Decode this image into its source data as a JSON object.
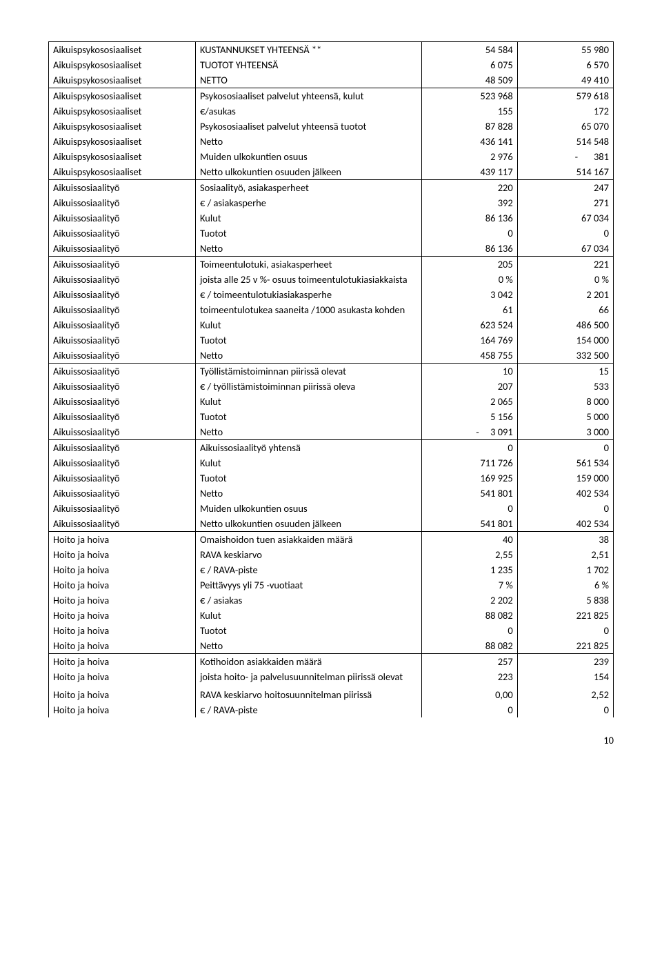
{
  "pageNumber": "10",
  "rows": [
    {
      "c0": "Aikuispsykososiaaliset",
      "c1": "KUSTANNUKSET YHTEENSÄ **",
      "c2": "54 584",
      "c3": "55 980",
      "hline": false
    },
    {
      "c0": "Aikuispsykososiaaliset",
      "c1": "TUOTOT YHTEENSÄ",
      "c2": "6 075",
      "c3": "6 570",
      "hline": false
    },
    {
      "c0": "Aikuispsykososiaaliset",
      "c1": "NETTO",
      "c2": "48 509",
      "c3": "49 410",
      "hline": true
    },
    {
      "c0": "Aikuispsykososiaaliset",
      "c1": "Psykososiaaliset palvelut yhteensä, kulut",
      "c2": "523 968",
      "c3": "579 618",
      "hline": false
    },
    {
      "c0": "Aikuispsykososiaaliset",
      "c1": "€/asukas",
      "c2": "155",
      "c3": "172",
      "hline": false
    },
    {
      "c0": "Aikuispsykososiaaliset",
      "c1": "Psykososiaaliset palvelut yhteensä tuotot",
      "c2": "87 828",
      "c3": "65 070",
      "hline": false
    },
    {
      "c0": "Aikuispsykososiaaliset",
      "c1": "Netto",
      "c2": "436 141",
      "c3": "514 548",
      "hline": false
    },
    {
      "c0": "Aikuispsykososiaaliset",
      "c1": "Muiden ulkokuntien osuus",
      "c2": "2 976",
      "c3": "-       381",
      "hline": false
    },
    {
      "c0": "Aikuispsykososiaaliset",
      "c1": "Netto ulkokuntien osuuden jälkeen",
      "c2": "439 117",
      "c3": "514 167",
      "hline": true
    },
    {
      "c0": "Aikuissosiaalityö",
      "c1": "Sosiaalityö, asiakasperheet",
      "c2": "220",
      "c3": "247",
      "hline": false
    },
    {
      "c0": "Aikuissosiaalityö",
      "c1": "€ / asiakasperhe",
      "c2": "392",
      "c3": "271",
      "hline": false
    },
    {
      "c0": "Aikuissosiaalityö",
      "c1": "Kulut",
      "c2": "86 136",
      "c3": "67 034",
      "hline": false
    },
    {
      "c0": "Aikuissosiaalityö",
      "c1": "Tuotot",
      "c2": "0",
      "c3": "0",
      "hline": false
    },
    {
      "c0": "Aikuissosiaalityö",
      "c1": "Netto",
      "c2": "86 136",
      "c3": "67 034",
      "hline": true
    },
    {
      "c0": "Aikuissosiaalityö",
      "c1": "Toimeentulotuki, asiakasperheet",
      "c2": "205",
      "c3": "221",
      "hline": false
    },
    {
      "c0": "Aikuissosiaalityö",
      "c1": "joista alle 25 v %- osuus toimeentulotukiasiakkaista",
      "c2": "0 %",
      "c3": "0 %",
      "hline": false
    },
    {
      "c0": "Aikuissosiaalityö",
      "c1": "€ / toimeentulotukiasiakasperhe",
      "c2": "3 042",
      "c3": "2 201",
      "hline": false
    },
    {
      "c0": "Aikuissosiaalityö",
      "c1": "toimeentulotukea saaneita /1000 asukasta kohden",
      "c2": "61",
      "c3": "66",
      "hline": false
    },
    {
      "c0": "Aikuissosiaalityö",
      "c1": "Kulut",
      "c2": "623 524",
      "c3": "486 500",
      "hline": false
    },
    {
      "c0": "Aikuissosiaalityö",
      "c1": "Tuotot",
      "c2": "164 769",
      "c3": "154 000",
      "hline": false
    },
    {
      "c0": "Aikuissosiaalityö",
      "c1": "Netto",
      "c2": "458 755",
      "c3": "332 500",
      "hline": true
    },
    {
      "c0": "Aikuissosiaalityö",
      "c1": "Työllistämistoiminnan piirissä olevat",
      "c2": "10",
      "c3": "15",
      "hline": false
    },
    {
      "c0": "Aikuissosiaalityö",
      "c1": "€ / työllistämistoiminnan piirissä oleva",
      "c2": "207",
      "c3": "533",
      "hline": false
    },
    {
      "c0": "Aikuissosiaalityö",
      "c1": "Kulut",
      "c2": "2 065",
      "c3": "8 000",
      "hline": false
    },
    {
      "c0": "Aikuissosiaalityö",
      "c1": "Tuotot",
      "c2": "5 156",
      "c3": "5 000",
      "hline": false
    },
    {
      "c0": "Aikuissosiaalityö",
      "c1": "Netto",
      "c2": "-     3 091",
      "c3": "3 000",
      "hline": true
    },
    {
      "c0": "Aikuissosiaalityö",
      "c1": "Aikuissosiaalityö yhtensä",
      "c2": "0",
      "c3": "0",
      "hline": false
    },
    {
      "c0": "Aikuissosiaalityö",
      "c1": "Kulut",
      "c2": "711 726",
      "c3": "561 534",
      "hline": false
    },
    {
      "c0": "Aikuissosiaalityö",
      "c1": "Tuotot",
      "c2": "169 925",
      "c3": "159 000",
      "hline": false
    },
    {
      "c0": "Aikuissosiaalityö",
      "c1": "Netto",
      "c2": "541 801",
      "c3": "402 534",
      "hline": false
    },
    {
      "c0": "Aikuissosiaalityö",
      "c1": "Muiden ulkokuntien osuus",
      "c2": "0",
      "c3": "0",
      "hline": false
    },
    {
      "c0": "Aikuissosiaalityö",
      "c1": "Netto ulkokuntien osuuden jälkeen",
      "c2": "541 801",
      "c3": "402 534",
      "hline": true
    },
    {
      "c0": "Hoito ja hoiva",
      "c1": "Omaishoidon tuen asiakkaiden määrä",
      "c2": "40",
      "c3": "38",
      "hline": false
    },
    {
      "c0": "Hoito ja hoiva",
      "c1": "RAVA keskiarvo",
      "c2": "2,55",
      "c3": "2,51",
      "hline": false
    },
    {
      "c0": "Hoito ja hoiva",
      "c1": "€ / RAVA-piste",
      "c2": "1 235",
      "c3": "1 702",
      "hline": false
    },
    {
      "c0": "Hoito ja hoiva",
      "c1": "Peittävyys yli 75 -vuotiaat",
      "c2": "7 %",
      "c3": "6 %",
      "hline": false
    },
    {
      "c0": "Hoito ja hoiva",
      "c1": "€ / asiakas",
      "c2": "2 202",
      "c3": "5 838",
      "hline": false
    },
    {
      "c0": "Hoito ja hoiva",
      "c1": "Kulut",
      "c2": "88 082",
      "c3": "221 825",
      "hline": false
    },
    {
      "c0": "Hoito ja hoiva",
      "c1": "Tuotot",
      "c2": "0",
      "c3": "0",
      "hline": false
    },
    {
      "c0": "Hoito ja hoiva",
      "c1": "Netto",
      "c2": "88 082",
      "c3": "221 825",
      "hline": true
    },
    {
      "c0": "Hoito ja hoiva",
      "c1": "Kotihoidon asiakkaiden määrä",
      "c2": "257",
      "c3": "239",
      "hline": false
    },
    {
      "c0": "Hoito ja hoiva",
      "c1": "joista hoito- ja palvelusuunnitelman piirissä olevat",
      "c2": "223",
      "c3": "154",
      "hline": false
    },
    {
      "c0": "",
      "c1": "",
      "c2": "",
      "c3": "",
      "hline": false
    },
    {
      "c0": "Hoito ja hoiva",
      "c1": "RAVA keskiarvo hoitosuunnitelman piirissä",
      "c2": "0,00",
      "c3": "2,52",
      "hline": false
    },
    {
      "c0": "Hoito ja hoiva",
      "c1": "€ / RAVA-piste",
      "c2": "0",
      "c3": "0",
      "hline": false
    }
  ]
}
